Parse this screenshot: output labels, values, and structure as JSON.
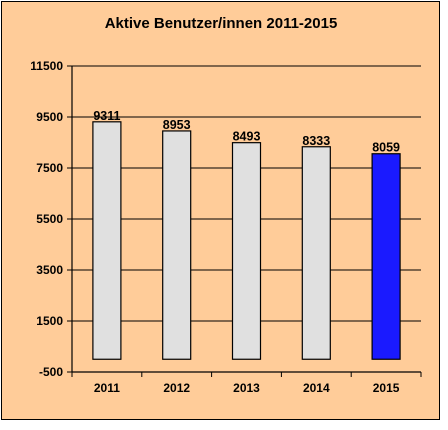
{
  "chart_data": {
    "type": "bar",
    "title": "Aktive Benutzer/innen 2011-2015",
    "xlabel": "",
    "ylabel": "",
    "categories": [
      "2011",
      "2012",
      "2013",
      "2014",
      "2015"
    ],
    "values": [
      9311,
      8953,
      8493,
      8333,
      8059
    ],
    "ylim": [
      -500,
      11500
    ],
    "yticks": [
      -500,
      1500,
      3500,
      5500,
      7500,
      9500,
      11500
    ],
    "grid": true,
    "legend": "none",
    "colors": {
      "background": "#ffcc99",
      "bar_default": "#e0e0e0",
      "bar_highlight": "#1a1aff",
      "highlight_category": "2015",
      "gridline": "#000000"
    }
  }
}
